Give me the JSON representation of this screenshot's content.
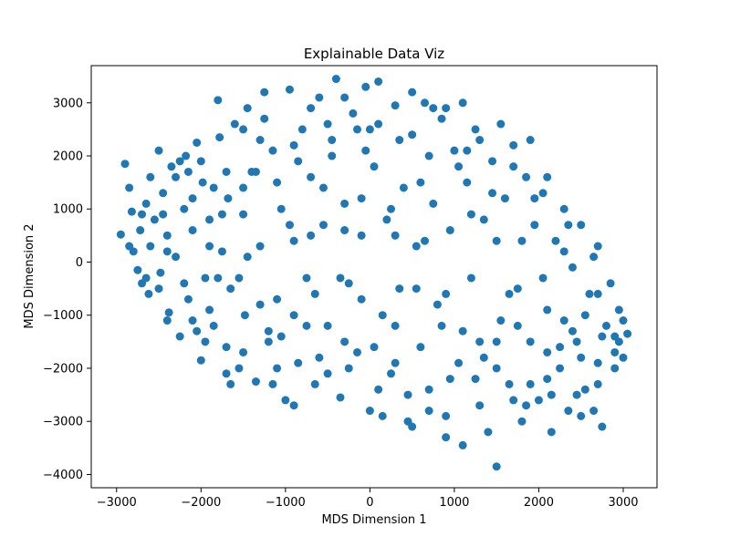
{
  "chart_data": {
    "type": "scatter",
    "title": "Explainable Data Viz",
    "xlabel": "MDS Dimension 1",
    "ylabel": "MDS Dimension 2",
    "xlim": [
      -3300,
      3400
    ],
    "ylim": [
      -4250,
      3700
    ],
    "xticks": [
      -3000,
      -2000,
      -1000,
      0,
      1000,
      2000,
      3000
    ],
    "yticks": [
      -4000,
      -3000,
      -2000,
      -1000,
      0,
      1000,
      2000,
      3000
    ],
    "xtick_labels": [
      "−3000",
      "−2000",
      "−1000",
      "0",
      "1000",
      "2000",
      "3000"
    ],
    "ytick_labels": [
      "−4000",
      "−3000",
      "−2000",
      "−1000",
      "0",
      "1000",
      "2000",
      "3000"
    ],
    "grid": false,
    "marker_color": "#1f77b4",
    "series": [
      {
        "values": [
          [
            -2950,
            520
          ],
          [
            -2900,
            1850
          ],
          [
            -2850,
            1400
          ],
          [
            -2820,
            950
          ],
          [
            -2800,
            200
          ],
          [
            -2750,
            -150
          ],
          [
            -2720,
            600
          ],
          [
            -2700,
            -400
          ],
          [
            -2650,
            1100
          ],
          [
            -2620,
            -600
          ],
          [
            -2600,
            300
          ],
          [
            -2550,
            800
          ],
          [
            -2500,
            2100
          ],
          [
            -2480,
            -200
          ],
          [
            -2450,
            1300
          ],
          [
            -2400,
            500
          ],
          [
            -2380,
            -950
          ],
          [
            -2350,
            1800
          ],
          [
            -2300,
            100
          ],
          [
            -2250,
            -1400
          ],
          [
            -2200,
            1000
          ],
          [
            -2180,
            2000
          ],
          [
            -2150,
            -700
          ],
          [
            -2100,
            600
          ],
          [
            -2050,
            2250
          ],
          [
            -2000,
            -1850
          ],
          [
            -1980,
            1500
          ],
          [
            -1950,
            -300
          ],
          [
            -1900,
            800
          ],
          [
            -1850,
            -1200
          ],
          [
            -1800,
            3050
          ],
          [
            -1780,
            2350
          ],
          [
            -1750,
            200
          ],
          [
            -1700,
            -1600
          ],
          [
            -1680,
            1200
          ],
          [
            -1650,
            -500
          ],
          [
            -1600,
            2600
          ],
          [
            -1550,
            -2000
          ],
          [
            -1500,
            900
          ],
          [
            -1480,
            -1000
          ],
          [
            -1450,
            2900
          ],
          [
            -1400,
            1700
          ],
          [
            -1350,
            -2250
          ],
          [
            -1300,
            300
          ],
          [
            -1250,
            3200
          ],
          [
            -1200,
            -1500
          ],
          [
            -1150,
            2100
          ],
          [
            -1100,
            -700
          ],
          [
            -1050,
            1000
          ],
          [
            -1000,
            -2600
          ],
          [
            -950,
            3250
          ],
          [
            -900,
            400
          ],
          [
            -850,
            -1900
          ],
          [
            -800,
            2500
          ],
          [
            -750,
            -300
          ],
          [
            -700,
            1600
          ],
          [
            -650,
            -2300
          ],
          [
            -600,
            3100
          ],
          [
            -550,
            700
          ],
          [
            -500,
            -1200
          ],
          [
            -450,
            2000
          ],
          [
            -400,
            3450
          ],
          [
            -350,
            -2550
          ],
          [
            -300,
            1100
          ],
          [
            -250,
            -400
          ],
          [
            -200,
            2800
          ],
          [
            -150,
            -1700
          ],
          [
            -100,
            500
          ],
          [
            -50,
            3300
          ],
          [
            0,
            -2800
          ],
          [
            50,
            1800
          ],
          [
            100,
            3400
          ],
          [
            150,
            -1000
          ],
          [
            200,
            800
          ],
          [
            250,
            -2100
          ],
          [
            300,
            2950
          ],
          [
            350,
            -500
          ],
          [
            400,
            1400
          ],
          [
            450,
            -3000
          ],
          [
            500,
            2400
          ],
          [
            550,
            300
          ],
          [
            600,
            -1600
          ],
          [
            650,
            3000
          ],
          [
            700,
            -2400
          ],
          [
            750,
            1100
          ],
          [
            800,
            -800
          ],
          [
            850,
            2700
          ],
          [
            900,
            -3300
          ],
          [
            950,
            600
          ],
          [
            1000,
            2100
          ],
          [
            1050,
            -1900
          ],
          [
            1100,
            -3450
          ],
          [
            1150,
            1500
          ],
          [
            1200,
            -300
          ],
          [
            1250,
            2500
          ],
          [
            1300,
            -2700
          ],
          [
            1350,
            800
          ],
          [
            1400,
            -3200
          ],
          [
            1450,
            1900
          ],
          [
            1500,
            -3850
          ],
          [
            1550,
            -1100
          ],
          [
            1600,
            1200
          ],
          [
            1650,
            -2300
          ],
          [
            1700,
            2200
          ],
          [
            1750,
            -500
          ],
          [
            1800,
            -3000
          ],
          [
            1850,
            1600
          ],
          [
            1900,
            -1500
          ],
          [
            1950,
            700
          ],
          [
            2000,
            -2600
          ],
          [
            2050,
            1300
          ],
          [
            2100,
            -900
          ],
          [
            2150,
            -3200
          ],
          [
            2200,
            400
          ],
          [
            2250,
            -2000
          ],
          [
            2300,
            1000
          ],
          [
            2350,
            -2800
          ],
          [
            2400,
            -100
          ],
          [
            2450,
            -1500
          ],
          [
            2500,
            700
          ],
          [
            2550,
            -2400
          ],
          [
            2600,
            -600
          ],
          [
            2650,
            100
          ],
          [
            2700,
            -1900
          ],
          [
            2750,
            -3100
          ],
          [
            2800,
            -1200
          ],
          [
            2850,
            -400
          ],
          [
            2900,
            -1700
          ],
          [
            2950,
            -900
          ],
          [
            3000,
            -1100
          ],
          [
            3050,
            -1350
          ],
          [
            -2600,
            1600
          ],
          [
            -2400,
            -1100
          ],
          [
            -2200,
            -400
          ],
          [
            -2000,
            1900
          ],
          [
            -1900,
            -900
          ],
          [
            -1700,
            1700
          ],
          [
            -1500,
            -1700
          ],
          [
            -1300,
            2300
          ],
          [
            -1100,
            -2000
          ],
          [
            -900,
            -1000
          ],
          [
            -700,
            2900
          ],
          [
            -500,
            -2100
          ],
          [
            -300,
            3100
          ],
          [
            -100,
            -700
          ],
          [
            100,
            2600
          ],
          [
            300,
            -1900
          ],
          [
            500,
            3200
          ],
          [
            700,
            -2800
          ],
          [
            900,
            2900
          ],
          [
            1100,
            -1300
          ],
          [
            1300,
            2300
          ],
          [
            1500,
            -2000
          ],
          [
            1700,
            1800
          ],
          [
            1900,
            -2300
          ],
          [
            2100,
            1600
          ],
          [
            2300,
            -1100
          ],
          [
            2500,
            -1800
          ],
          [
            2700,
            -600
          ],
          [
            2900,
            -1400
          ],
          [
            -2700,
            900
          ],
          [
            -2500,
            -500
          ],
          [
            -2300,
            1600
          ],
          [
            -2100,
            -1100
          ],
          [
            -1900,
            300
          ],
          [
            -1700,
            -2100
          ],
          [
            -1500,
            2500
          ],
          [
            -1300,
            -800
          ],
          [
            -1100,
            1500
          ],
          [
            -900,
            -2700
          ],
          [
            -700,
            500
          ],
          [
            -500,
            2600
          ],
          [
            -300,
            -1500
          ],
          [
            -100,
            1200
          ],
          [
            100,
            -2400
          ],
          [
            300,
            500
          ],
          [
            500,
            -3100
          ],
          [
            700,
            2000
          ],
          [
            900,
            -600
          ],
          [
            1100,
            3000
          ],
          [
            1300,
            -1500
          ],
          [
            1500,
            400
          ],
          [
            1700,
            -2600
          ],
          [
            1900,
            2300
          ],
          [
            2100,
            -1700
          ],
          [
            2300,
            200
          ],
          [
            2500,
            -2900
          ],
          [
            2700,
            300
          ],
          [
            2900,
            -2000
          ],
          [
            -2850,
            300
          ],
          [
            -2650,
            -300
          ],
          [
            -2450,
            900
          ],
          [
            -2250,
            1900
          ],
          [
            -2050,
            -1300
          ],
          [
            -1850,
            1400
          ],
          [
            -1650,
            -2300
          ],
          [
            -1450,
            100
          ],
          [
            -1250,
            2700
          ],
          [
            -1050,
            -1400
          ],
          [
            -850,
            1900
          ],
          [
            -650,
            -600
          ],
          [
            -450,
            2300
          ],
          [
            -250,
            -2000
          ],
          [
            -50,
            2100
          ],
          [
            150,
            -2900
          ],
          [
            350,
            2300
          ],
          [
            550,
            -500
          ],
          [
            750,
            2900
          ],
          [
            950,
            -2200
          ],
          [
            1150,
            2100
          ],
          [
            1350,
            -1800
          ],
          [
            1550,
            2600
          ],
          [
            1750,
            -1200
          ],
          [
            1950,
            1200
          ],
          [
            2150,
            -2500
          ],
          [
            2350,
            700
          ],
          [
            2550,
            -1000
          ],
          [
            2750,
            -1400
          ],
          [
            2950,
            -1500
          ],
          [
            -2400,
            200
          ],
          [
            -2100,
            1200
          ],
          [
            -1800,
            -300
          ],
          [
            -1500,
            1400
          ],
          [
            -1200,
            -1300
          ],
          [
            -900,
            2200
          ],
          [
            -600,
            -1800
          ],
          [
            -300,
            600
          ],
          [
            0,
            2500
          ],
          [
            300,
            -1200
          ],
          [
            600,
            1500
          ],
          [
            900,
            -2900
          ],
          [
            1200,
            900
          ],
          [
            1500,
            -1500
          ],
          [
            1800,
            400
          ],
          [
            2100,
            -2200
          ],
          [
            2400,
            -1300
          ],
          [
            2700,
            -2300
          ],
          [
            3000,
            -1800
          ],
          [
            -2150,
            1700
          ],
          [
            -1950,
            -1500
          ],
          [
            -1750,
            900
          ],
          [
            -1550,
            -300
          ],
          [
            -1350,
            1700
          ],
          [
            -1150,
            -2300
          ],
          [
            -950,
            700
          ],
          [
            -750,
            -1200
          ],
          [
            -550,
            1400
          ],
          [
            -350,
            -300
          ],
          [
            -150,
            2500
          ],
          [
            50,
            -1600
          ],
          [
            250,
            1000
          ],
          [
            450,
            -2500
          ],
          [
            650,
            400
          ],
          [
            850,
            -1200
          ],
          [
            1050,
            1800
          ],
          [
            1250,
            -2200
          ],
          [
            1450,
            1300
          ],
          [
            1650,
            -600
          ],
          [
            1850,
            -2700
          ],
          [
            2050,
            -300
          ],
          [
            2250,
            -1600
          ],
          [
            2450,
            -2500
          ],
          [
            2650,
            -2800
          ]
        ]
      }
    ]
  }
}
